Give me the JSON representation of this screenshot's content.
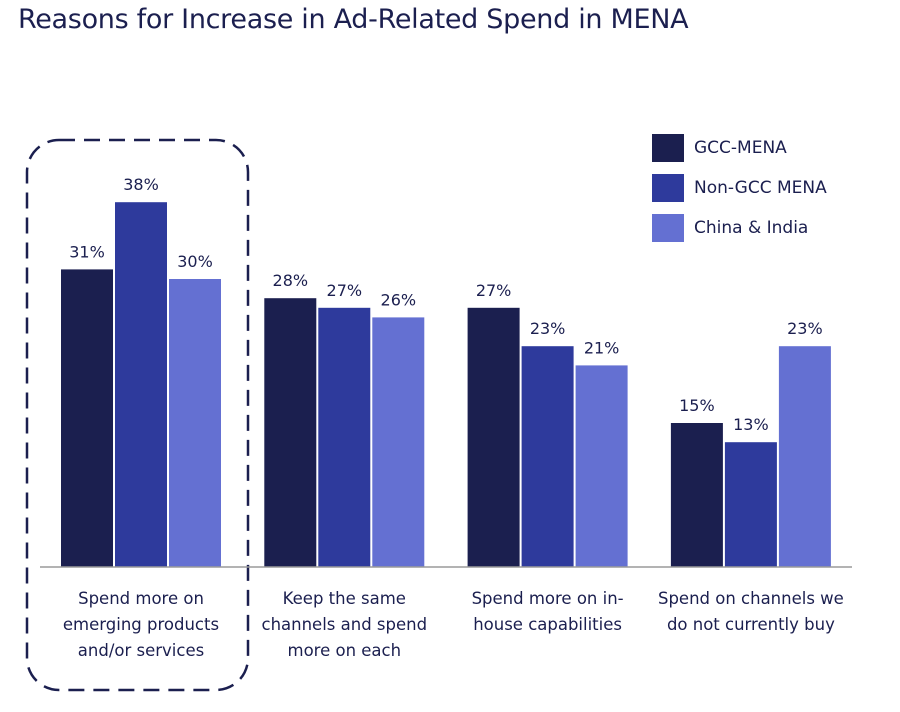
{
  "title": "Reasons for Increase in Ad-Related Spend in MENA",
  "chart_data": {
    "type": "bar",
    "title": "Reasons for Increase in Ad-Related Spend in MENA",
    "categories": [
      [
        "Spend more on",
        "emerging products",
        "and/or services"
      ],
      [
        "Keep the same",
        "channels and spend",
        "more on each"
      ],
      [
        "Spend more on in-",
        "house capabilities"
      ],
      [
        "Spend on channels we",
        "do not currently buy"
      ]
    ],
    "series": [
      {
        "name": "GCC-MENA",
        "color": "#1b1f4f",
        "values": [
          31,
          28,
          27,
          15
        ]
      },
      {
        "name": "Non-GCC MENA",
        "color": "#2e3a9c",
        "values": [
          38,
          27,
          23,
          13
        ]
      },
      {
        "name": "China & India",
        "color": "#6470d2",
        "values": [
          30,
          26,
          21,
          23
        ]
      }
    ],
    "value_suffix": "%",
    "ylim": [
      0,
      40
    ],
    "grid": false,
    "legend_position": "top-right",
    "highlighted_category": 0
  }
}
